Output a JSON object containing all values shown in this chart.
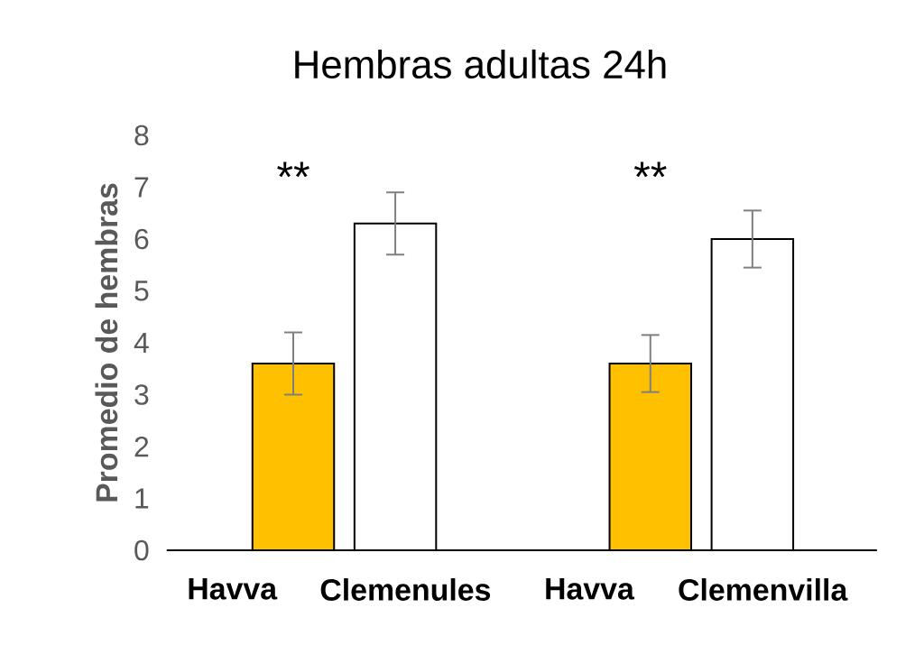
{
  "chart_data": {
    "type": "bar",
    "title": "Hembras adultas 24h",
    "ylabel": "Promedio de hembras",
    "categories": [
      "Havva",
      "Clemenules",
      "Havva",
      "Clemenvilla"
    ],
    "values": [
      3.6,
      6.3,
      3.6,
      6.0
    ],
    "errors": [
      0.6,
      0.6,
      0.55,
      0.55
    ],
    "colors": [
      "#ffc000",
      "#ffffff",
      "#ffc000",
      "#ffffff"
    ],
    "ylim": [
      0,
      8
    ],
    "yticks": [
      0,
      1,
      2,
      3,
      4,
      5,
      6,
      7,
      8
    ],
    "grid": false,
    "annotations": [
      "**",
      "**"
    ]
  }
}
